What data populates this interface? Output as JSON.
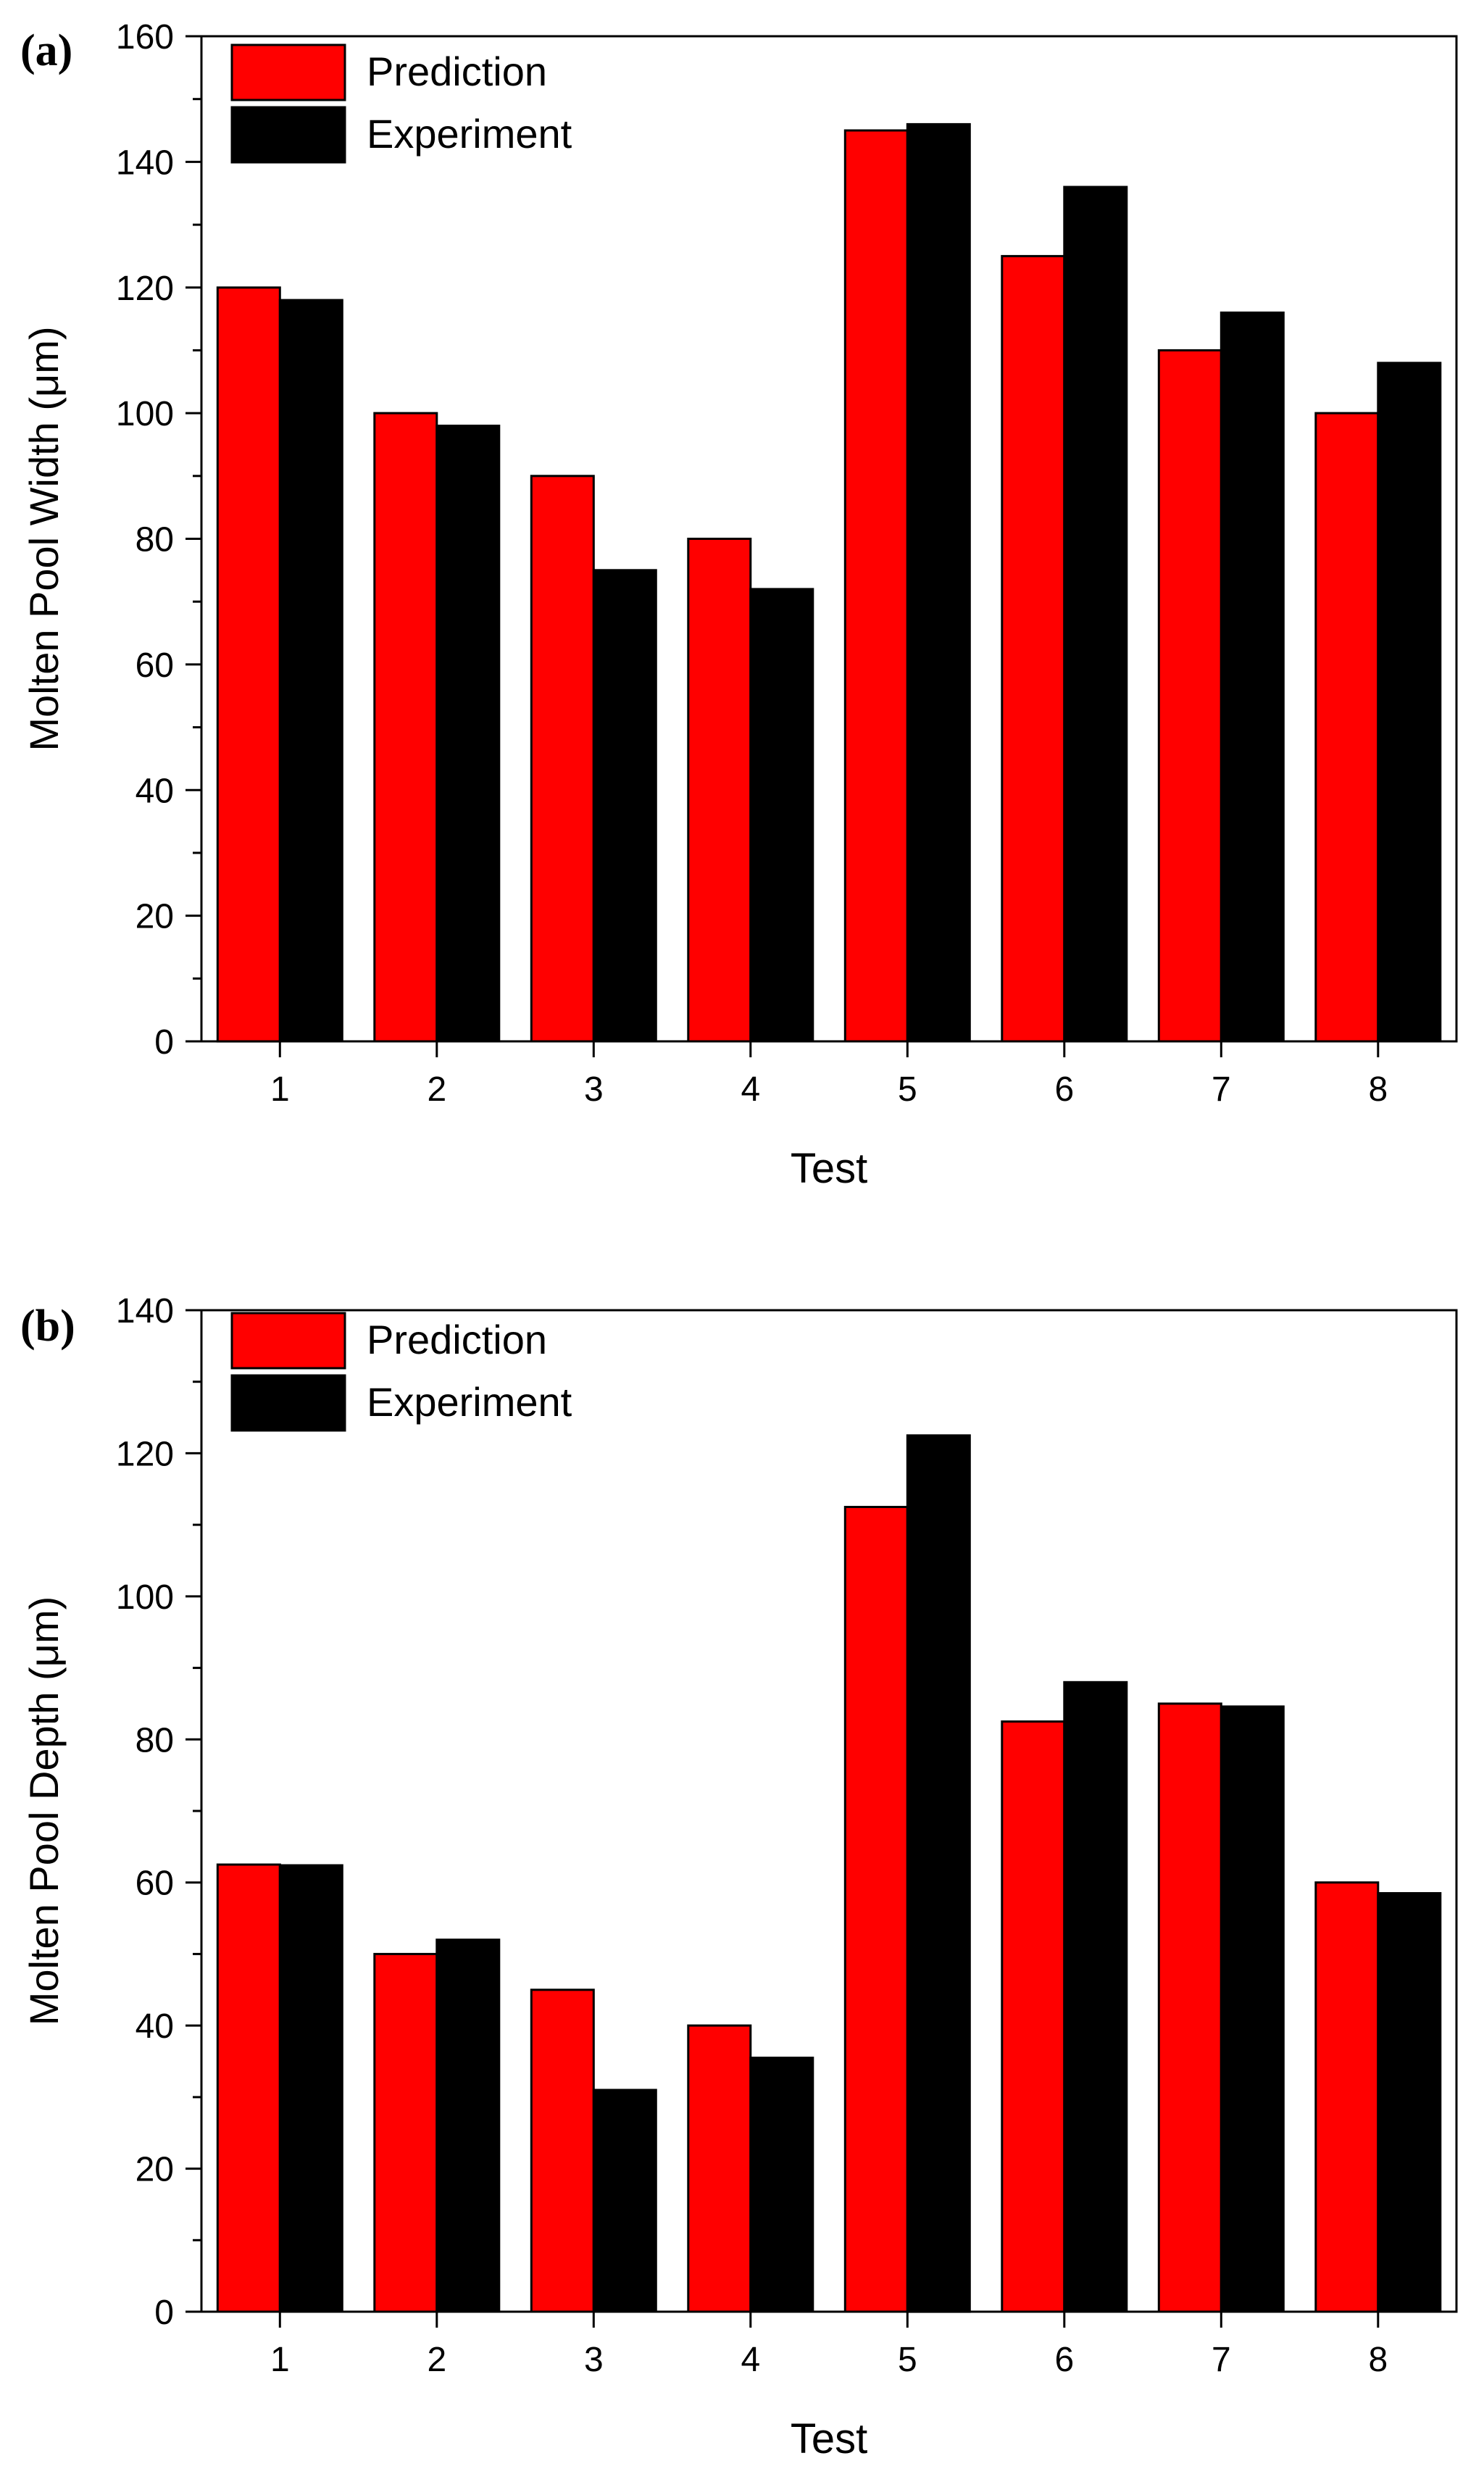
{
  "colors": {
    "prediction": "#ff0000",
    "experiment": "#000000",
    "axis": "#000000",
    "background": "#ffffff"
  },
  "chart_data": [
    {
      "type": "bar",
      "panel_label": "(a)",
      "title": "",
      "xlabel": "Test",
      "ylabel": "Molten Pool Width (μm)",
      "categories": [
        "1",
        "2",
        "3",
        "4",
        "5",
        "6",
        "7",
        "8"
      ],
      "series": [
        {
          "name": "Prediction",
          "color": "#ff0000",
          "values": [
            120,
            100,
            90,
            80,
            145,
            125,
            110,
            100
          ]
        },
        {
          "name": "Experiment",
          "color": "#000000",
          "values": [
            118,
            98,
            75,
            72,
            146,
            136,
            116,
            108
          ]
        }
      ],
      "ylim": [
        0,
        160
      ],
      "yticks": [
        "0",
        "20",
        "40",
        "60",
        "80",
        "100",
        "120",
        "140",
        "160"
      ],
      "minor_tick_step": 10,
      "grid": false,
      "legend_position": "top-left"
    },
    {
      "type": "bar",
      "panel_label": "(b)",
      "title": "",
      "xlabel": "Test",
      "ylabel": "Molten Pool Depth (μm)",
      "categories": [
        "1",
        "2",
        "3",
        "4",
        "5",
        "6",
        "7",
        "8"
      ],
      "series": [
        {
          "name": "Prediction",
          "color": "#ff0000",
          "values": [
            62.5,
            50,
            45,
            40,
            112.5,
            82.5,
            85,
            60
          ]
        },
        {
          "name": "Experiment",
          "color": "#000000",
          "values": [
            62.4,
            52,
            31,
            35.5,
            122.5,
            88,
            84.6,
            58.5
          ]
        }
      ],
      "ylim": [
        0,
        140
      ],
      "yticks": [
        "0",
        "20",
        "40",
        "60",
        "80",
        "100",
        "120",
        "140"
      ],
      "minor_tick_step": 10,
      "grid": false,
      "legend_position": "top-left"
    }
  ]
}
